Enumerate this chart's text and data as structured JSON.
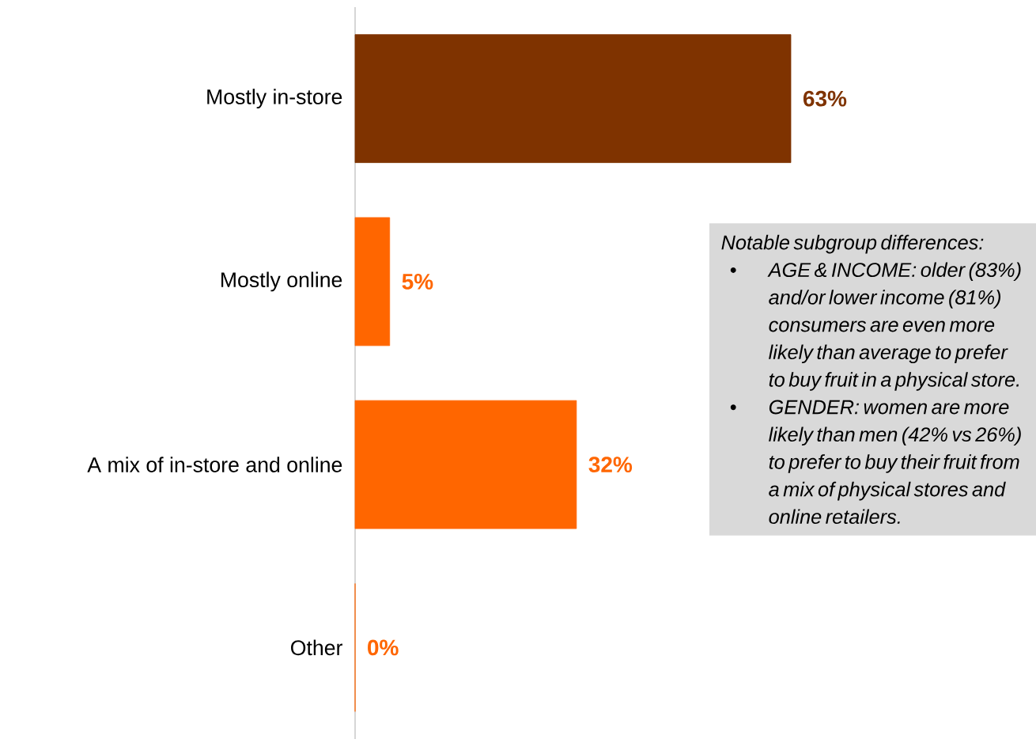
{
  "chart_data": {
    "type": "bar",
    "orientation": "horizontal",
    "categories": [
      "Mostly in-store",
      "Mostly online",
      "A mix of in-store and online",
      "Other"
    ],
    "values": [
      63,
      5,
      32,
      0
    ],
    "colors": [
      "#7f3300",
      "#ff6600",
      "#ff6600",
      "#ff6600"
    ],
    "value_labels": [
      "63%",
      "5%",
      "32%",
      "0%"
    ],
    "annotations": [
      "Notable subgroup differences:",
      "•",
      "AGE & INCOME: older (83%) and/or lower income (81%) consumers are even more likely than average to prefer to buy fruit in a physical store.",
      "•",
      "GENDER: women are more likely than men (42% vs 26%) to prefer to buy their fruit from a mix of physical stores and online retailers."
    ]
  }
}
